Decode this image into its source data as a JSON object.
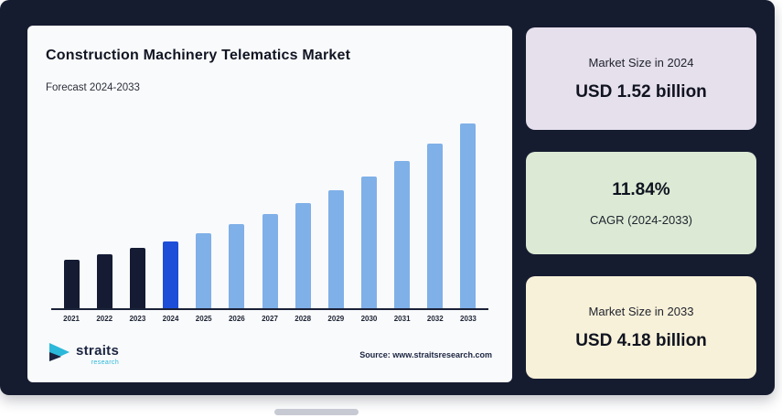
{
  "page": {
    "background": "#161c30"
  },
  "chart": {
    "title": "Construction Machinery Telematics Market",
    "subtitle": "Forecast 2024-2033",
    "source": "Source: www.straitsresearch.com"
  },
  "logo": {
    "name": "straits",
    "sub": "research"
  },
  "chart_data": {
    "type": "bar",
    "title": "Construction Machinery Telematics Market",
    "subtitle": "Forecast 2024-2033",
    "categories": [
      "2021",
      "2022",
      "2023",
      "2024",
      "2025",
      "2026",
      "2027",
      "2028",
      "2029",
      "2030",
      "2031",
      "2032",
      "2033"
    ],
    "values": [
      1.09,
      1.21,
      1.36,
      1.52,
      1.7,
      1.9,
      2.13,
      2.38,
      2.66,
      2.97,
      3.33,
      3.72,
      4.18
    ],
    "unit": "USD billion",
    "ylim": [
      0,
      4.4
    ],
    "grid": false,
    "legend": "none",
    "bar_colors": {
      "historical": "#141b33",
      "base_year": "#1d4ed8",
      "forecast": "#7fb0e8"
    },
    "color_assignment": [
      "historical",
      "historical",
      "historical",
      "base_year",
      "forecast",
      "forecast",
      "forecast",
      "forecast",
      "forecast",
      "forecast",
      "forecast",
      "forecast",
      "forecast"
    ]
  },
  "cards": [
    {
      "label": "Market Size in 2024",
      "value": "USD 1.52 billion",
      "bg": "#e6dfec"
    },
    {
      "value": "11.84%",
      "label": "CAGR (2024-2033)",
      "bg": "#dcead5"
    },
    {
      "label": "Market Size in 2033",
      "value": "USD 4.18 billion",
      "bg": "#f8f1d9"
    }
  ]
}
